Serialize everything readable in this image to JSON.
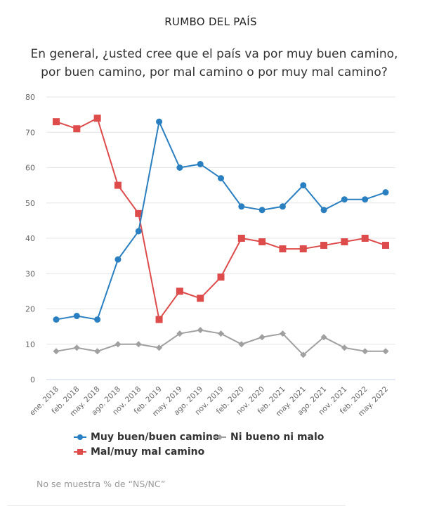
{
  "header": {
    "kicker": "RUMBO DEL PAÍS",
    "question_line1": "En general, ¿usted cree que el país va por muy buen camino,",
    "question_line2": "por buen camino, por mal camino o por muy mal camino?"
  },
  "note": "No se muestra % de “NS/NC”",
  "chart_data": {
    "type": "line",
    "title": "RUMBO DEL PAÍS",
    "xlabel": "",
    "ylabel": "",
    "ylim": [
      0,
      80
    ],
    "yticks": [
      0,
      10,
      20,
      30,
      40,
      50,
      60,
      70,
      80
    ],
    "grid": true,
    "legend_position": "bottom",
    "categories": [
      "ene. 2018",
      "feb. 2018",
      "may. 2018",
      "ago. 2018",
      "nov. 2018",
      "feb. 2019",
      "may. 2019",
      "ago. 2019",
      "nov. 2019",
      "feb. 2020",
      "nov. 2020",
      "feb. 2021",
      "may. 2021",
      "ago. 2021",
      "nov. 2021",
      "feb. 2022",
      "may. 2022"
    ],
    "series": [
      {
        "name": "Muy buen/buen camino",
        "color": "#2a7fc1",
        "marker": "circle",
        "values": [
          17,
          18,
          17,
          34,
          42,
          73,
          60,
          61,
          57,
          49,
          48,
          49,
          55,
          48,
          51,
          51,
          53
        ]
      },
      {
        "name": "Mal/muy mal camino",
        "color": "#dd4b4b",
        "marker": "square",
        "values": [
          73,
          71,
          74,
          55,
          47,
          17,
          25,
          23,
          29,
          40,
          39,
          37,
          37,
          38,
          39,
          40,
          38
        ]
      },
      {
        "name": "Ni bueno ni malo",
        "color": "#a0a0a0",
        "marker": "diamond",
        "values": [
          8,
          9,
          8,
          10,
          10,
          9,
          13,
          14,
          13,
          10,
          12,
          13,
          7,
          12,
          9,
          8,
          8
        ]
      }
    ]
  }
}
